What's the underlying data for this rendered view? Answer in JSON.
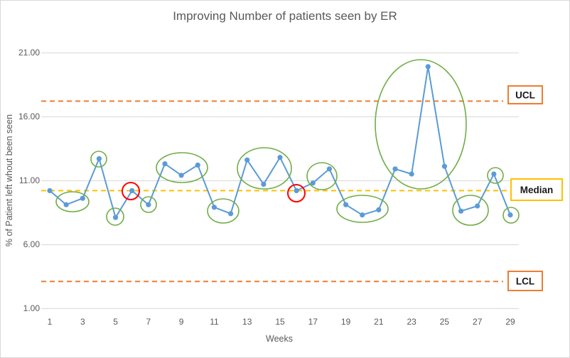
{
  "chart_data": {
    "type": "line",
    "title": "Improving Number of patients seen by ER",
    "xlabel": "Weeks",
    "ylabel": "% of Patient left whout been seen",
    "xlim": [
      1,
      29
    ],
    "ylim": [
      1,
      21
    ],
    "x_ticks": [
      1,
      3,
      5,
      7,
      9,
      11,
      13,
      15,
      17,
      19,
      21,
      23,
      25,
      27,
      29
    ],
    "x_tick_labels": [
      "1",
      "3",
      "5",
      "7",
      "9",
      "11",
      "13",
      "15",
      "17",
      "19",
      "21",
      "23",
      "25",
      "27",
      "29"
    ],
    "y_ticks": [
      1,
      6,
      11,
      16,
      21
    ],
    "y_tick_labels": [
      "1.00",
      "6.00",
      "11.00",
      "16.00",
      "21.00"
    ],
    "grid": "horizontal",
    "x": [
      1,
      2,
      3,
      4,
      5,
      6,
      7,
      8,
      9,
      10,
      11,
      12,
      13,
      14,
      15,
      16,
      17,
      18,
      19,
      20,
      21,
      22,
      23,
      24,
      25,
      26,
      27,
      28,
      29
    ],
    "series": [
      {
        "color": "#5B9BD5",
        "values": [
          10.2,
          9.1,
          9.6,
          12.7,
          8.1,
          10.2,
          9.1,
          12.3,
          11.4,
          12.2,
          8.9,
          8.4,
          12.6,
          10.7,
          12.8,
          10.2,
          10.8,
          11.9,
          9.1,
          8.3,
          8.7,
          11.9,
          11.5,
          19.9,
          12.1,
          8.6,
          9.0,
          11.5,
          8.3
        ]
      }
    ],
    "reference_lines": [
      {
        "label": "UCL",
        "value": 17.2,
        "color": "#ED7D31"
      },
      {
        "label": "Median",
        "value": 10.2,
        "color": "#FFC000"
      },
      {
        "label": "LCL",
        "value": 3.1,
        "color": "#ED7D31"
      }
    ],
    "annotations": [
      {
        "weeks": [
          2,
          3
        ],
        "color": "#70AD47"
      },
      {
        "weeks": [
          4
        ],
        "color": "#70AD47"
      },
      {
        "weeks": [
          5
        ],
        "color": "#70AD47"
      },
      {
        "weeks": [
          6
        ],
        "color": "#FF0000"
      },
      {
        "weeks": [
          7
        ],
        "color": "#70AD47"
      },
      {
        "weeks": [
          8,
          9,
          10
        ],
        "color": "#70AD47"
      },
      {
        "weeks": [
          11,
          12
        ],
        "color": "#70AD47"
      },
      {
        "weeks": [
          13,
          14,
          15
        ],
        "color": "#70AD47"
      },
      {
        "weeks": [
          16
        ],
        "color": "#FF0000"
      },
      {
        "weeks": [
          17,
          18
        ],
        "color": "#70AD47"
      },
      {
        "weeks": [
          19,
          20,
          21
        ],
        "color": "#70AD47"
      },
      {
        "weeks": [
          22,
          23,
          24
        ],
        "color": "#70AD47"
      },
      {
        "weeks": [
          26,
          27
        ],
        "color": "#70AD47"
      },
      {
        "weeks": [
          28
        ],
        "color": "#70AD47"
      },
      {
        "weeks": [
          29
        ],
        "color": "#70AD47"
      }
    ]
  }
}
